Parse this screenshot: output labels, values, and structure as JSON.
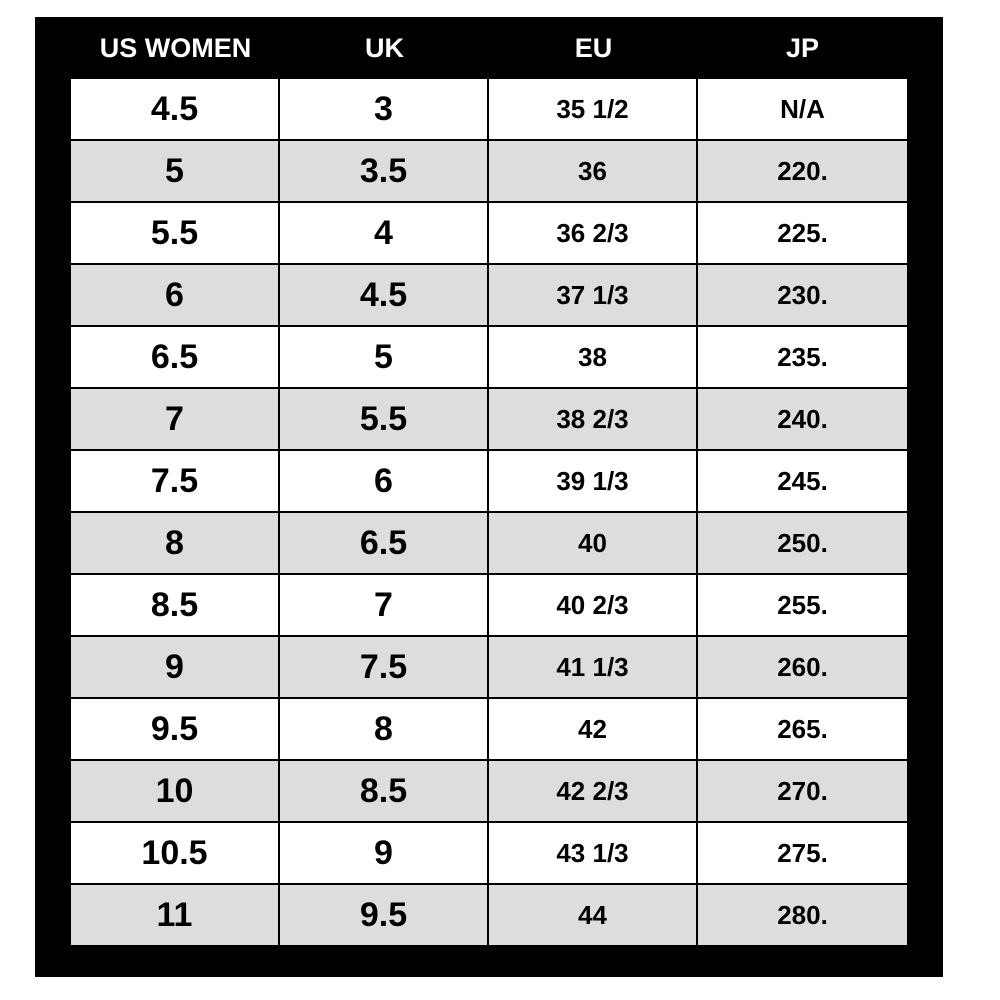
{
  "headers": {
    "us_women": "US WOMEN",
    "uk": "UK",
    "eu": "EU",
    "jp": "JP"
  },
  "rows": [
    {
      "us": "4.5",
      "uk": "3",
      "eu": "35 1/2",
      "jp": "N/A"
    },
    {
      "us": "5",
      "uk": "3.5",
      "eu": "36",
      "jp": "220."
    },
    {
      "us": "5.5",
      "uk": "4",
      "eu": "36 2/3",
      "jp": "225."
    },
    {
      "us": "6",
      "uk": "4.5",
      "eu": "37 1/3",
      "jp": "230."
    },
    {
      "us": "6.5",
      "uk": "5",
      "eu": "38",
      "jp": "235."
    },
    {
      "us": "7",
      "uk": "5.5",
      "eu": "38 2/3",
      "jp": "240."
    },
    {
      "us": "7.5",
      "uk": "6",
      "eu": "39 1/3",
      "jp": "245."
    },
    {
      "us": "8",
      "uk": "6.5",
      "eu": "40",
      "jp": "250."
    },
    {
      "us": "8.5",
      "uk": "7",
      "eu": "40 2/3",
      "jp": "255."
    },
    {
      "us": "9",
      "uk": "7.5",
      "eu": "41 1/3",
      "jp": "260."
    },
    {
      "us": "9.5",
      "uk": "8",
      "eu": "42",
      "jp": "265."
    },
    {
      "us": "10",
      "uk": "8.5",
      "eu": "42 2/3",
      "jp": "270."
    },
    {
      "us": "10.5",
      "uk": "9",
      "eu": "43 1/3",
      "jp": "275."
    },
    {
      "us": "11",
      "uk": "9.5",
      "eu": "44",
      "jp": "280."
    }
  ],
  "colors": {
    "frame": "#000000",
    "header_text": "#ffffff",
    "row_white": "#ffffff",
    "row_gray": "#dddddd"
  }
}
